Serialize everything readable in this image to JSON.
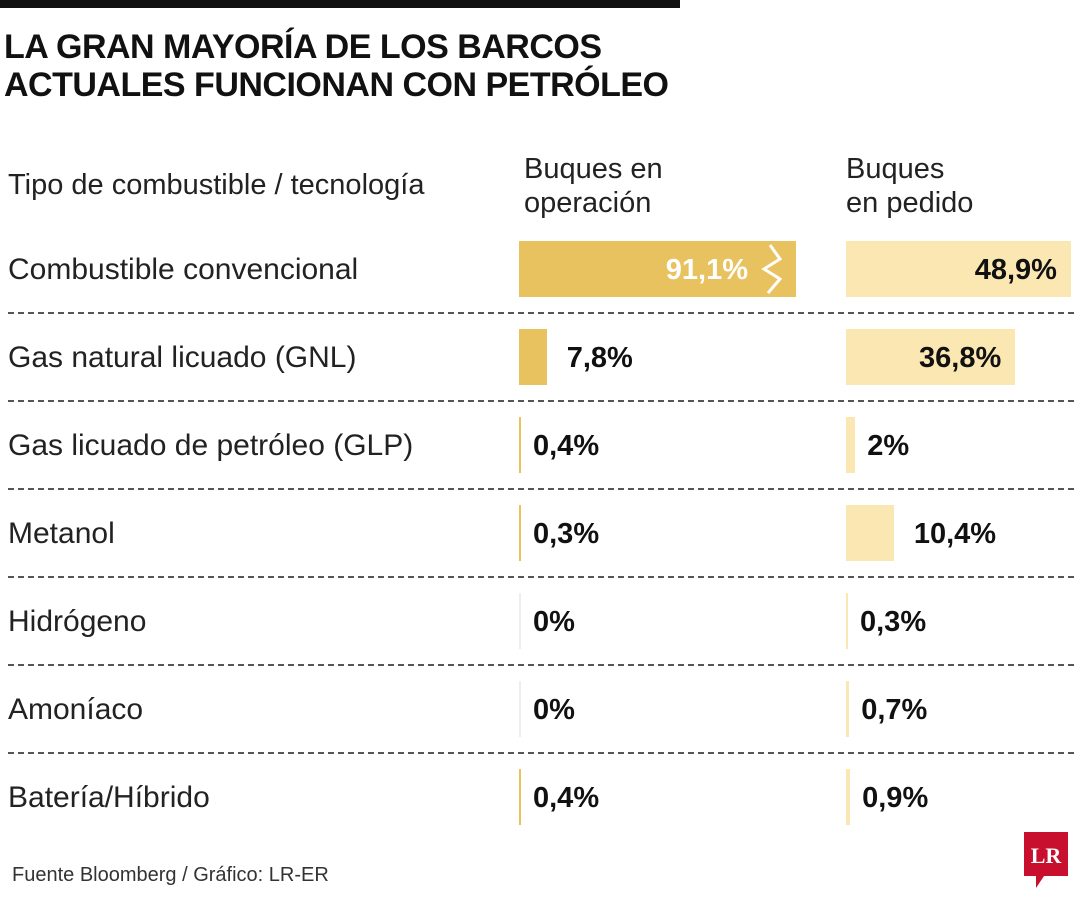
{
  "title": {
    "line1": "LA GRAN MAYORÍA DE LOS BARCOS",
    "line2": "ACTUALES FUNCIONAN CON PETRÓLEO"
  },
  "source": "Fuente Bloomberg / Gráfico: LR-ER",
  "logo_text": "LR",
  "colors": {
    "operation_bar": "#e8c25f",
    "ordered_bar": "#fbe7b2",
    "logo": "#c8102e"
  },
  "chart_data": {
    "type": "bar",
    "orientation": "horizontal",
    "category_header": "Tipo de combustible / tecnología",
    "categories": [
      "Combustible convencional",
      "Gas natural licuado (GNL)",
      "Gas licuado de petróleo (GLP)",
      "Metanol",
      "Hidrógeno",
      "Amoníaco",
      "Batería/Híbrido"
    ],
    "series": [
      {
        "name": "Buques en operación",
        "header_lines": [
          "Buques en",
          "operación"
        ],
        "values": [
          91.1,
          7.8,
          0.4,
          0.3,
          0,
          0,
          0.4
        ],
        "labels": [
          "91,1%",
          "7,8%",
          "0,4%",
          "0,3%",
          "0%",
          "0%",
          "0,4%"
        ]
      },
      {
        "name": "Buques en pedido",
        "header_lines": [
          "Buques",
          "en pedido"
        ],
        "values": [
          48.9,
          36.8,
          2,
          10.4,
          0.3,
          0.7,
          0.9
        ],
        "labels": [
          "48,9%",
          "36,8%",
          "2%",
          "10,4%",
          "0,3%",
          "0,7%",
          "0,9%"
        ]
      }
    ],
    "axis_break": "Combustible convencional / Buques en operación"
  }
}
